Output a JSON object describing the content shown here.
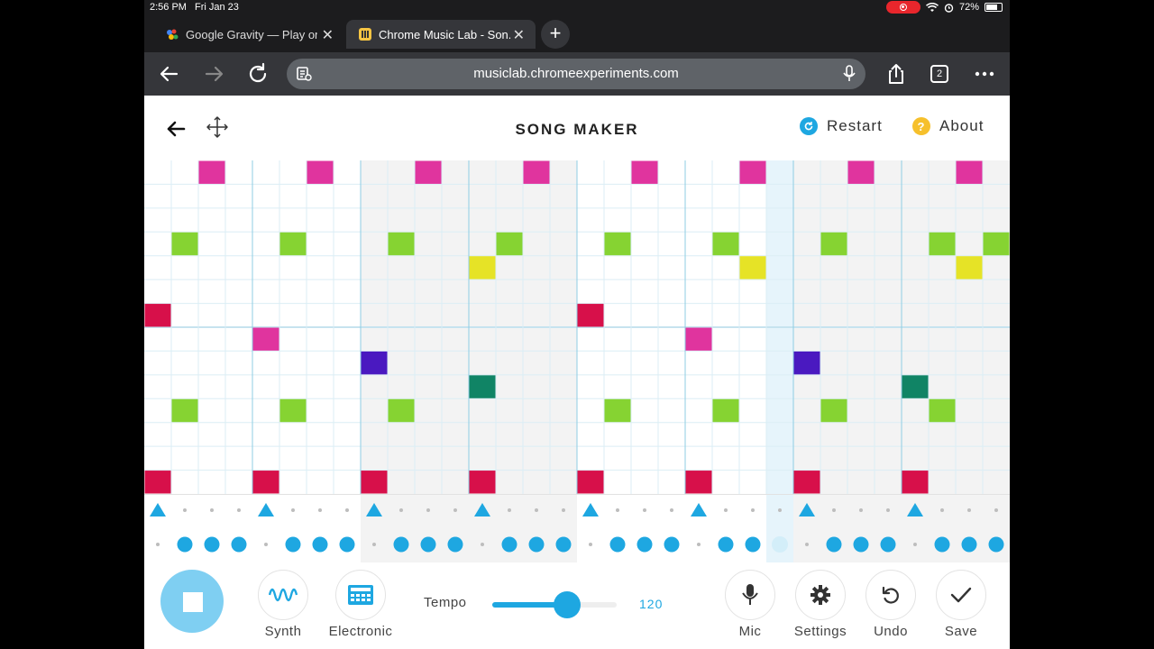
{
  "status": {
    "time": "2:56 PM",
    "date": "Fri Jan 23",
    "battery": "72%",
    "battery_level": 0.72
  },
  "tabs": [
    {
      "title": "Google Gravity — Play on...",
      "active": false
    },
    {
      "title": "Chrome Music Lab - Son...",
      "active": true
    }
  ],
  "browser": {
    "url": "musiclab.chromeexperiments.com",
    "tab_count": "2"
  },
  "app": {
    "title": "SONG MAKER",
    "restart_label": "Restart",
    "about_label": "About",
    "about_icon_glyph": "?"
  },
  "colors": {
    "accent": "#1ea7e1",
    "note_top": "#e0349e",
    "note_green": "#86d332",
    "note_yellow": "#e6e326",
    "note_red": "#d7104a",
    "note_purple": "#4a19c0",
    "note_teal": "#108465"
  },
  "grid": {
    "cols": 32,
    "rows": 14,
    "playhead_col": 23,
    "notes": [
      {
        "col": 2,
        "row": 0,
        "color": "note_top"
      },
      {
        "col": 6,
        "row": 0,
        "color": "note_top"
      },
      {
        "col": 10,
        "row": 0,
        "color": "note_top"
      },
      {
        "col": 14,
        "row": 0,
        "color": "note_top"
      },
      {
        "col": 18,
        "row": 0,
        "color": "note_top"
      },
      {
        "col": 22,
        "row": 0,
        "color": "note_top"
      },
      {
        "col": 26,
        "row": 0,
        "color": "note_top"
      },
      {
        "col": 30,
        "row": 0,
        "color": "note_top"
      },
      {
        "col": 1,
        "row": 3,
        "color": "note_green"
      },
      {
        "col": 5,
        "row": 3,
        "color": "note_green"
      },
      {
        "col": 9,
        "row": 3,
        "color": "note_green"
      },
      {
        "col": 13,
        "row": 3,
        "color": "note_green"
      },
      {
        "col": 17,
        "row": 3,
        "color": "note_green"
      },
      {
        "col": 21,
        "row": 3,
        "color": "note_green"
      },
      {
        "col": 25,
        "row": 3,
        "color": "note_green"
      },
      {
        "col": 29,
        "row": 3,
        "color": "note_green"
      },
      {
        "col": 31,
        "row": 3,
        "color": "note_green"
      },
      {
        "col": 12,
        "row": 4,
        "color": "note_yellow"
      },
      {
        "col": 22,
        "row": 4,
        "color": "note_yellow"
      },
      {
        "col": 30,
        "row": 4,
        "color": "note_yellow"
      },
      {
        "col": 0,
        "row": 6,
        "color": "note_red"
      },
      {
        "col": 16,
        "row": 6,
        "color": "note_red"
      },
      {
        "col": 4,
        "row": 7,
        "color": "note_top"
      },
      {
        "col": 20,
        "row": 7,
        "color": "note_top"
      },
      {
        "col": 8,
        "row": 8,
        "color": "note_purple"
      },
      {
        "col": 24,
        "row": 8,
        "color": "note_purple"
      },
      {
        "col": 12,
        "row": 9,
        "color": "note_teal"
      },
      {
        "col": 28,
        "row": 9,
        "color": "note_teal"
      },
      {
        "col": 1,
        "row": 10,
        "color": "note_green"
      },
      {
        "col": 5,
        "row": 10,
        "color": "note_green"
      },
      {
        "col": 9,
        "row": 10,
        "color": "note_green"
      },
      {
        "col": 17,
        "row": 10,
        "color": "note_green"
      },
      {
        "col": 21,
        "row": 10,
        "color": "note_green"
      },
      {
        "col": 25,
        "row": 10,
        "color": "note_green"
      },
      {
        "col": 29,
        "row": 10,
        "color": "note_green"
      },
      {
        "col": 0,
        "row": 13,
        "color": "note_red"
      },
      {
        "col": 4,
        "row": 13,
        "color": "note_red"
      },
      {
        "col": 8,
        "row": 13,
        "color": "note_red"
      },
      {
        "col": 12,
        "row": 13,
        "color": "note_red"
      },
      {
        "col": 16,
        "row": 13,
        "color": "note_red"
      },
      {
        "col": 20,
        "row": 13,
        "color": "note_red"
      },
      {
        "col": 24,
        "row": 13,
        "color": "note_red"
      },
      {
        "col": 28,
        "row": 13,
        "color": "note_red"
      }
    ],
    "triangle_cols": [
      0,
      4,
      8,
      12,
      16,
      20,
      24,
      28
    ],
    "circle_cols": [
      1,
      2,
      3,
      5,
      6,
      7,
      9,
      10,
      11,
      13,
      14,
      15,
      17,
      18,
      19,
      21,
      22,
      25,
      26,
      27,
      29,
      30,
      31
    ]
  },
  "controls": {
    "synth_label": "Synth",
    "electronic_label": "Electronic",
    "tempo_label": "Tempo",
    "tempo_value": "120",
    "tempo_fraction": 0.6,
    "mic_label": "Mic",
    "settings_label": "Settings",
    "undo_label": "Undo",
    "save_label": "Save"
  }
}
